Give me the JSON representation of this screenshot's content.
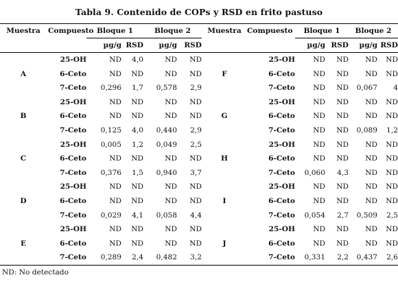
{
  "title": "Tabla 9. Contenido de COPs y RSD en frito pastuso",
  "headers": {
    "muestra": "Muestra",
    "compuesto": "Compuesto",
    "bloque1": "Bloque 1",
    "bloque2": "Bloque 2",
    "ug": "µg/g",
    "rsd": "RSD"
  },
  "rows": [
    {
      "left": {
        "muestra": "",
        "compuesto": "25-OH",
        "b1": "ND",
        "r1": "4,0",
        "b2": "ND",
        "r2": "ND"
      },
      "right": {
        "muestra": "",
        "compuesto": "25-OH",
        "b1": "ND",
        "r1": "ND",
        "b2": "ND",
        "r2": "ND"
      }
    },
    {
      "left": {
        "muestra": "A",
        "compuesto": "6-Ceto",
        "b1": "ND",
        "r1": "ND",
        "b2": "ND",
        "r2": "ND"
      },
      "right": {
        "muestra": "F",
        "compuesto": "6-Ceto",
        "b1": "ND",
        "r1": "ND",
        "b2": "ND",
        "r2": "ND"
      }
    },
    {
      "left": {
        "muestra": "",
        "compuesto": "7-Ceto",
        "b1": "0,296",
        "r1": "1,7",
        "b2": "0,578",
        "r2": "2,9"
      },
      "right": {
        "muestra": "",
        "compuesto": "7-Ceto",
        "b1": "ND",
        "r1": "ND",
        "b2": "0,067",
        "r2": "4"
      }
    },
    {
      "left": {
        "muestra": "",
        "compuesto": "25-OH",
        "b1": "ND",
        "r1": "ND",
        "b2": "ND",
        "r2": "ND"
      },
      "right": {
        "muestra": "",
        "compuesto": "25-OH",
        "b1": "ND",
        "r1": "ND",
        "b2": "ND",
        "r2": "ND"
      }
    },
    {
      "left": {
        "muestra": "B",
        "compuesto": "6-Ceto",
        "b1": "ND",
        "r1": "ND",
        "b2": "ND",
        "r2": "ND"
      },
      "right": {
        "muestra": "G",
        "compuesto": "6-Ceto",
        "b1": "ND",
        "r1": "ND",
        "b2": "ND",
        "r2": "ND"
      }
    },
    {
      "left": {
        "muestra": "",
        "compuesto": "7-Ceto",
        "b1": "0,125",
        "r1": "4,0",
        "b2": "0,440",
        "r2": "2,9"
      },
      "right": {
        "muestra": "",
        "compuesto": "7-Ceto",
        "b1": "ND",
        "r1": "ND",
        "b2": "0,089",
        "r2": "1,2"
      }
    },
    {
      "left": {
        "muestra": "",
        "compuesto": "25-OH",
        "b1": "0,005",
        "r1": "1,2",
        "b2": "0,049",
        "r2": "2,5"
      },
      "right": {
        "muestra": "",
        "compuesto": "25-OH",
        "b1": "ND",
        "r1": "ND",
        "b2": "ND",
        "r2": "ND"
      }
    },
    {
      "left": {
        "muestra": "C",
        "compuesto": "6-Ceto",
        "b1": "ND",
        "r1": "ND",
        "b2": "ND",
        "r2": "ND"
      },
      "right": {
        "muestra": "H",
        "compuesto": "6-Ceto",
        "b1": "ND",
        "r1": "ND",
        "b2": "ND",
        "r2": "ND"
      }
    },
    {
      "left": {
        "muestra": "",
        "compuesto": "7-Ceto",
        "b1": "0,376",
        "r1": "1,5",
        "b2": "0,940",
        "r2": "3,7"
      },
      "right": {
        "muestra": "",
        "compuesto": "7-Ceto",
        "b1": "0,060",
        "r1": "4,3",
        "b2": "ND",
        "r2": "ND"
      }
    },
    {
      "left": {
        "muestra": "",
        "compuesto": "25-OH",
        "b1": "ND",
        "r1": "ND",
        "b2": "ND",
        "r2": "ND"
      },
      "right": {
        "muestra": "",
        "compuesto": "25-OH",
        "b1": "ND",
        "r1": "ND",
        "b2": "ND",
        "r2": "ND"
      }
    },
    {
      "left": {
        "muestra": "D",
        "compuesto": "6-Ceto",
        "b1": "ND",
        "r1": "ND",
        "b2": "ND",
        "r2": "ND"
      },
      "right": {
        "muestra": "I",
        "compuesto": "6-Ceto",
        "b1": "ND",
        "r1": "ND",
        "b2": "ND",
        "r2": "ND"
      }
    },
    {
      "left": {
        "muestra": "",
        "compuesto": "7-Ceto",
        "b1": "0,029",
        "r1": "4,1",
        "b2": "0,058",
        "r2": "4,4"
      },
      "right": {
        "muestra": "",
        "compuesto": "7-Ceto",
        "b1": "0,054",
        "r1": "2,7",
        "b2": "0,509",
        "r2": "2,5"
      }
    },
    {
      "left": {
        "muestra": "",
        "compuesto": "25-OH",
        "b1": "ND",
        "r1": "ND",
        "b2": "ND",
        "r2": "ND"
      },
      "right": {
        "muestra": "",
        "compuesto": "25-OH",
        "b1": "ND",
        "r1": "ND",
        "b2": "ND",
        "r2": "ND"
      }
    },
    {
      "left": {
        "muestra": "E",
        "compuesto": "6-Ceto",
        "b1": "ND",
        "r1": "ND",
        "b2": "ND",
        "r2": "ND"
      },
      "right": {
        "muestra": "J",
        "compuesto": "6-Ceto",
        "b1": "ND",
        "r1": "ND",
        "b2": "ND",
        "r2": "ND"
      }
    },
    {
      "left": {
        "muestra": "",
        "compuesto": "7-Ceto",
        "b1": "0,289",
        "r1": "2,4",
        "b2": "0,482",
        "r2": "3,2"
      },
      "right": {
        "muestra": "",
        "compuesto": "7-Ceto",
        "b1": "0,331",
        "r1": "2,2",
        "b2": "0,437",
        "r2": "2,6"
      }
    }
  ],
  "footnote": "ND: No detectado"
}
